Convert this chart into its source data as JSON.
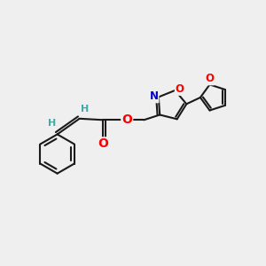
{
  "bg_color": "#efefef",
  "bond_color": "#1a1a1a",
  "bond_width": 1.5,
  "atom_colors": {
    "O": "#ff0000",
    "N": "#0000cc",
    "H": "#3aada8",
    "C": "#1a1a1a"
  },
  "font_size": 8.5,
  "fig_size": [
    3.0,
    3.0
  ],
  "dpi": 100
}
